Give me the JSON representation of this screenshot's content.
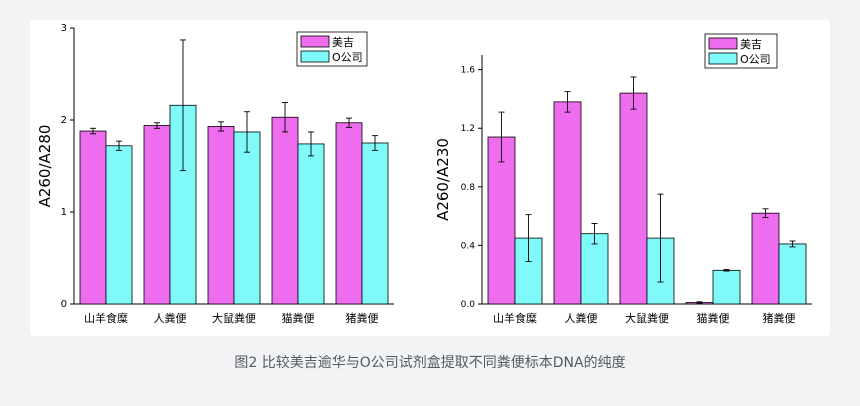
{
  "caption": "图2 比较美吉逾华与O公司试剂盒提取不同粪便标本DNA的纯度",
  "colors": {
    "series_a": "#ee6cee",
    "series_b": "#7ff9f9",
    "axis": "#000000"
  },
  "chart_data": [
    {
      "type": "bar",
      "ylabel": "A260/A280",
      "ylim": [
        0,
        3
      ],
      "yticks": [
        "0",
        "1",
        "2",
        "3"
      ],
      "yticks_values": [
        0,
        1,
        2,
        3
      ],
      "legend_position": "top-right",
      "categories": [
        "山羊食糜",
        "人粪便",
        "大鼠粪便",
        "猫粪便",
        "猪粪便"
      ],
      "series": [
        {
          "name": "美吉",
          "values": [
            1.88,
            1.94,
            1.93,
            2.03,
            1.97
          ],
          "errors": [
            0.03,
            0.03,
            0.05,
            0.16,
            0.05
          ]
        },
        {
          "name": "O公司",
          "values": [
            1.72,
            2.16,
            1.87,
            1.74,
            1.75
          ],
          "errors": [
            0.05,
            0.71,
            0.22,
            0.13,
            0.08
          ]
        }
      ]
    },
    {
      "type": "bar",
      "ylabel": "A260/A230",
      "ylim": [
        0,
        1.7
      ],
      "yticks": [
        "0.0",
        "0.4",
        "0.8",
        "1.2",
        "1.6"
      ],
      "yticks_values": [
        0,
        0.4,
        0.8,
        1.2,
        1.6
      ],
      "legend_position": "top-right",
      "categories": [
        "山羊食糜",
        "人粪便",
        "大鼠粪便",
        "猫粪便",
        "猪粪便"
      ],
      "series": [
        {
          "name": "美吉",
          "values": [
            1.14,
            1.38,
            1.44,
            0.01,
            0.62
          ],
          "errors": [
            0.17,
            0.07,
            0.11,
            0.005,
            0.03
          ]
        },
        {
          "name": "O公司",
          "values": [
            0.45,
            0.48,
            0.45,
            0.23,
            0.41
          ],
          "errors": [
            0.16,
            0.07,
            0.3,
            0.005,
            0.02
          ]
        }
      ]
    }
  ]
}
